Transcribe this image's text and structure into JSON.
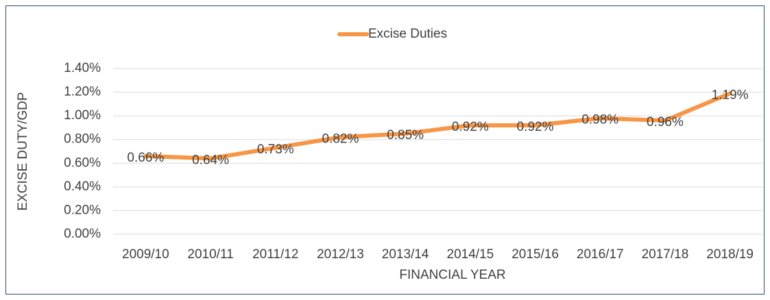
{
  "chart_data": {
    "type": "line",
    "x_label": "FINANCIAL YEAR",
    "y_label": "EXCISE DUTY/GDP",
    "categories": [
      "2009/10",
      "2010/11",
      "2011/12",
      "2012/13",
      "2013/14",
      "2014/15",
      "2015/16",
      "2016/17",
      "2017/18",
      "2018/19"
    ],
    "series": [
      {
        "name": "Excise Duties",
        "color": "#f79646",
        "values": [
          0.66,
          0.64,
          0.73,
          0.82,
          0.85,
          0.92,
          0.92,
          0.98,
          0.96,
          1.19
        ],
        "value_labels": [
          "0.66%",
          "0.64%",
          "0.73%",
          "0.82%",
          "0.85%",
          "0.92%",
          "0.92%",
          "0.98%",
          "0.96%",
          "1.19%"
        ]
      }
    ],
    "ylim": [
      0,
      1.4
    ],
    "yticks": [
      {
        "value": 0,
        "label": "0.00%"
      },
      {
        "value": 0.2,
        "label": "0.20%"
      },
      {
        "value": 0.4,
        "label": "0.40%"
      },
      {
        "value": 0.6,
        "label": "0.60%"
      },
      {
        "value": 0.8,
        "label": "0.80%"
      },
      {
        "value": 1.0,
        "label": "1.00%"
      },
      {
        "value": 1.2,
        "label": "1.20%"
      },
      {
        "value": 1.4,
        "label": "1.40%"
      }
    ],
    "grid": true,
    "legend": "top"
  }
}
